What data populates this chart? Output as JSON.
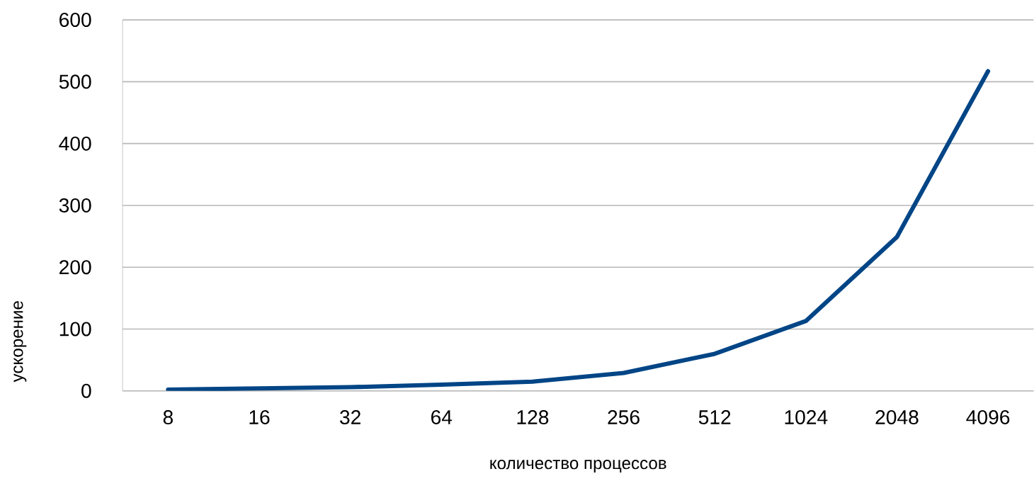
{
  "chart_data": {
    "type": "line",
    "xlabel": "количество процессов",
    "ylabel": "ускорение",
    "categories": [
      "8",
      "16",
      "32",
      "64",
      "128",
      "256",
      "512",
      "1024",
      "2048",
      "4096"
    ],
    "series": [
      {
        "color": "#004586",
        "values": [
          2,
          4,
          6,
          10,
          15,
          29,
          60,
          113,
          249,
          517
        ]
      }
    ],
    "ylim": [
      0,
      600
    ],
    "yticks": [
      0,
      100,
      200,
      300,
      400,
      500,
      600
    ],
    "grid": "y",
    "legend": false,
    "marker": "none",
    "line_style": "solid"
  }
}
